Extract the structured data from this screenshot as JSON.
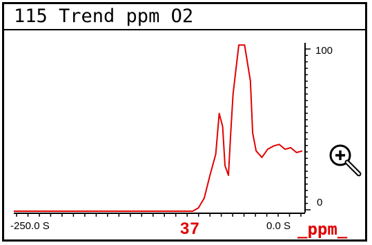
{
  "header": {
    "title": "115 Trend ppm O2"
  },
  "trend": {
    "y_tick_top": "100",
    "y_tick_bottom": "0",
    "x_tick_left": "-250.0 S",
    "x_tick_right": "0.0 S",
    "line_color": "#e00000"
  },
  "readout": {
    "value": "37",
    "unit": "_ppm_"
  },
  "icons": {
    "zoom": "zoom-in-icon"
  },
  "chart_data": {
    "type": "line",
    "x": [
      -250,
      -200,
      -150,
      -95,
      -90,
      -85,
      -80,
      -75,
      -72,
      -69,
      -67,
      -64,
      -62,
      -60,
      -55,
      -50,
      -45,
      -43,
      -40,
      -35,
      -30,
      -25,
      -20,
      -15,
      -10,
      -5,
      0
    ],
    "y": [
      0,
      0,
      0,
      0,
      2,
      8,
      22,
      35,
      60,
      52,
      28,
      22,
      48,
      72,
      102,
      102,
      80,
      48,
      37,
      33,
      38,
      40,
      41,
      38,
      39,
      36,
      37
    ],
    "ylim": [
      0,
      100
    ],
    "xlim": [
      -250,
      0
    ],
    "xlabel": "",
    "ylabel": "",
    "grid": false
  }
}
